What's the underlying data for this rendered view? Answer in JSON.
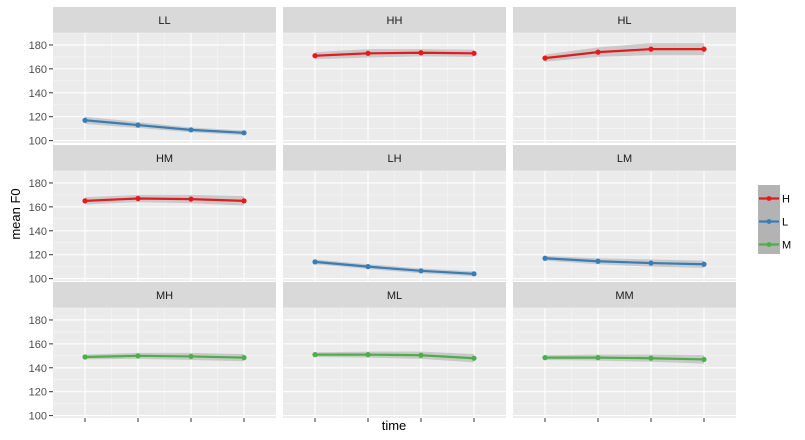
{
  "chart_data": {
    "type": "line",
    "xlabel": "time",
    "ylabel": "mean F0",
    "ylim": [
      98,
      190
    ],
    "yticks": [
      100,
      120,
      140,
      160,
      180
    ],
    "x": [
      1,
      2,
      3,
      4
    ],
    "facet_rows": 3,
    "facet_cols": 3,
    "colors": {
      "H": "#e41a1c",
      "L": "#377eb8",
      "M": "#4daf4a"
    },
    "panel_bg": "#ebebeb",
    "strip_bg": "#d9d9d9",
    "ribbon_color": "#bdbdbd",
    "legend": {
      "placement": "right",
      "entries": [
        "H",
        "L",
        "M"
      ]
    },
    "panels": [
      {
        "label": "LL",
        "series": "L",
        "values": [
          117,
          113,
          109,
          106.5
        ],
        "ci": [
          3,
          2.5,
          2,
          2
        ]
      },
      {
        "label": "HH",
        "series": "H",
        "values": [
          171,
          173,
          173.5,
          173
        ],
        "ci": [
          3,
          3.5,
          3,
          3
        ]
      },
      {
        "label": "HL",
        "series": "H",
        "values": [
          169,
          174,
          176.5,
          176.5
        ],
        "ci": [
          3,
          4,
          5,
          5
        ]
      },
      {
        "label": "HM",
        "series": "H",
        "values": [
          165,
          167,
          166.5,
          165
        ],
        "ci": [
          3,
          3,
          3.5,
          4
        ]
      },
      {
        "label": "LH",
        "series": "L",
        "values": [
          114,
          110,
          106.5,
          104
        ],
        "ci": [
          2,
          2,
          2,
          2
        ]
      },
      {
        "label": "LM",
        "series": "L",
        "values": [
          117,
          114.5,
          113,
          112
        ],
        "ci": [
          2,
          2.5,
          3,
          3
        ]
      },
      {
        "label": "MH",
        "series": "M",
        "values": [
          149,
          150,
          149.5,
          148.5
        ],
        "ci": [
          2,
          2.5,
          3,
          3
        ]
      },
      {
        "label": "ML",
        "series": "M",
        "values": [
          151,
          151,
          150.5,
          148
        ],
        "ci": [
          2,
          2.5,
          3,
          3.5
        ]
      },
      {
        "label": "MM",
        "series": "M",
        "values": [
          148.5,
          148.5,
          148,
          147
        ],
        "ci": [
          2,
          2.5,
          3,
          3.5
        ]
      }
    ]
  }
}
